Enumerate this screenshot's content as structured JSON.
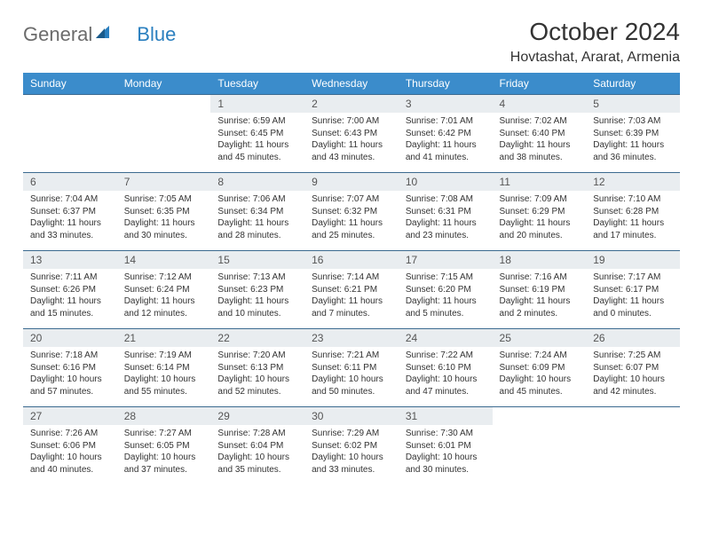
{
  "brand": {
    "part1": "General",
    "part2": "Blue"
  },
  "title": "October 2024",
  "location": "Hovtashat, Ararat, Armenia",
  "weekdays": [
    "Sunday",
    "Monday",
    "Tuesday",
    "Wednesday",
    "Thursday",
    "Friday",
    "Saturday"
  ],
  "colors": {
    "header_bg": "#3b8ccb",
    "header_text": "#ffffff",
    "daynum_bg": "#e9edf0",
    "row_border": "#3b6a8f",
    "logo_gray": "#6b6b6b",
    "logo_blue": "#2a7fbf"
  },
  "weeks": [
    [
      {
        "n": "",
        "sr": "",
        "ss": "",
        "dl": ""
      },
      {
        "n": "",
        "sr": "",
        "ss": "",
        "dl": ""
      },
      {
        "n": "1",
        "sr": "Sunrise: 6:59 AM",
        "ss": "Sunset: 6:45 PM",
        "dl": "Daylight: 11 hours and 45 minutes."
      },
      {
        "n": "2",
        "sr": "Sunrise: 7:00 AM",
        "ss": "Sunset: 6:43 PM",
        "dl": "Daylight: 11 hours and 43 minutes."
      },
      {
        "n": "3",
        "sr": "Sunrise: 7:01 AM",
        "ss": "Sunset: 6:42 PM",
        "dl": "Daylight: 11 hours and 41 minutes."
      },
      {
        "n": "4",
        "sr": "Sunrise: 7:02 AM",
        "ss": "Sunset: 6:40 PM",
        "dl": "Daylight: 11 hours and 38 minutes."
      },
      {
        "n": "5",
        "sr": "Sunrise: 7:03 AM",
        "ss": "Sunset: 6:39 PM",
        "dl": "Daylight: 11 hours and 36 minutes."
      }
    ],
    [
      {
        "n": "6",
        "sr": "Sunrise: 7:04 AM",
        "ss": "Sunset: 6:37 PM",
        "dl": "Daylight: 11 hours and 33 minutes."
      },
      {
        "n": "7",
        "sr": "Sunrise: 7:05 AM",
        "ss": "Sunset: 6:35 PM",
        "dl": "Daylight: 11 hours and 30 minutes."
      },
      {
        "n": "8",
        "sr": "Sunrise: 7:06 AM",
        "ss": "Sunset: 6:34 PM",
        "dl": "Daylight: 11 hours and 28 minutes."
      },
      {
        "n": "9",
        "sr": "Sunrise: 7:07 AM",
        "ss": "Sunset: 6:32 PM",
        "dl": "Daylight: 11 hours and 25 minutes."
      },
      {
        "n": "10",
        "sr": "Sunrise: 7:08 AM",
        "ss": "Sunset: 6:31 PM",
        "dl": "Daylight: 11 hours and 23 minutes."
      },
      {
        "n": "11",
        "sr": "Sunrise: 7:09 AM",
        "ss": "Sunset: 6:29 PM",
        "dl": "Daylight: 11 hours and 20 minutes."
      },
      {
        "n": "12",
        "sr": "Sunrise: 7:10 AM",
        "ss": "Sunset: 6:28 PM",
        "dl": "Daylight: 11 hours and 17 minutes."
      }
    ],
    [
      {
        "n": "13",
        "sr": "Sunrise: 7:11 AM",
        "ss": "Sunset: 6:26 PM",
        "dl": "Daylight: 11 hours and 15 minutes."
      },
      {
        "n": "14",
        "sr": "Sunrise: 7:12 AM",
        "ss": "Sunset: 6:24 PM",
        "dl": "Daylight: 11 hours and 12 minutes."
      },
      {
        "n": "15",
        "sr": "Sunrise: 7:13 AM",
        "ss": "Sunset: 6:23 PM",
        "dl": "Daylight: 11 hours and 10 minutes."
      },
      {
        "n": "16",
        "sr": "Sunrise: 7:14 AM",
        "ss": "Sunset: 6:21 PM",
        "dl": "Daylight: 11 hours and 7 minutes."
      },
      {
        "n": "17",
        "sr": "Sunrise: 7:15 AM",
        "ss": "Sunset: 6:20 PM",
        "dl": "Daylight: 11 hours and 5 minutes."
      },
      {
        "n": "18",
        "sr": "Sunrise: 7:16 AM",
        "ss": "Sunset: 6:19 PM",
        "dl": "Daylight: 11 hours and 2 minutes."
      },
      {
        "n": "19",
        "sr": "Sunrise: 7:17 AM",
        "ss": "Sunset: 6:17 PM",
        "dl": "Daylight: 11 hours and 0 minutes."
      }
    ],
    [
      {
        "n": "20",
        "sr": "Sunrise: 7:18 AM",
        "ss": "Sunset: 6:16 PM",
        "dl": "Daylight: 10 hours and 57 minutes."
      },
      {
        "n": "21",
        "sr": "Sunrise: 7:19 AM",
        "ss": "Sunset: 6:14 PM",
        "dl": "Daylight: 10 hours and 55 minutes."
      },
      {
        "n": "22",
        "sr": "Sunrise: 7:20 AM",
        "ss": "Sunset: 6:13 PM",
        "dl": "Daylight: 10 hours and 52 minutes."
      },
      {
        "n": "23",
        "sr": "Sunrise: 7:21 AM",
        "ss": "Sunset: 6:11 PM",
        "dl": "Daylight: 10 hours and 50 minutes."
      },
      {
        "n": "24",
        "sr": "Sunrise: 7:22 AM",
        "ss": "Sunset: 6:10 PM",
        "dl": "Daylight: 10 hours and 47 minutes."
      },
      {
        "n": "25",
        "sr": "Sunrise: 7:24 AM",
        "ss": "Sunset: 6:09 PM",
        "dl": "Daylight: 10 hours and 45 minutes."
      },
      {
        "n": "26",
        "sr": "Sunrise: 7:25 AM",
        "ss": "Sunset: 6:07 PM",
        "dl": "Daylight: 10 hours and 42 minutes."
      }
    ],
    [
      {
        "n": "27",
        "sr": "Sunrise: 7:26 AM",
        "ss": "Sunset: 6:06 PM",
        "dl": "Daylight: 10 hours and 40 minutes."
      },
      {
        "n": "28",
        "sr": "Sunrise: 7:27 AM",
        "ss": "Sunset: 6:05 PM",
        "dl": "Daylight: 10 hours and 37 minutes."
      },
      {
        "n": "29",
        "sr": "Sunrise: 7:28 AM",
        "ss": "Sunset: 6:04 PM",
        "dl": "Daylight: 10 hours and 35 minutes."
      },
      {
        "n": "30",
        "sr": "Sunrise: 7:29 AM",
        "ss": "Sunset: 6:02 PM",
        "dl": "Daylight: 10 hours and 33 minutes."
      },
      {
        "n": "31",
        "sr": "Sunrise: 7:30 AM",
        "ss": "Sunset: 6:01 PM",
        "dl": "Daylight: 10 hours and 30 minutes."
      },
      {
        "n": "",
        "sr": "",
        "ss": "",
        "dl": ""
      },
      {
        "n": "",
        "sr": "",
        "ss": "",
        "dl": ""
      }
    ]
  ]
}
